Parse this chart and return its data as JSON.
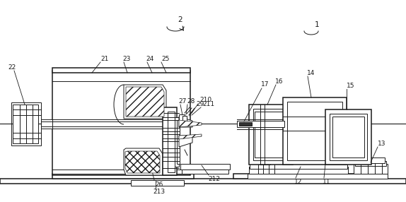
{
  "bg_color": "#ffffff",
  "lc": "#1a1a1a",
  "figsize": [
    5.74,
    2.86
  ],
  "dpi": 100,
  "fontsize": 6.5,
  "lw": 0.7,
  "lwt": 1.1
}
